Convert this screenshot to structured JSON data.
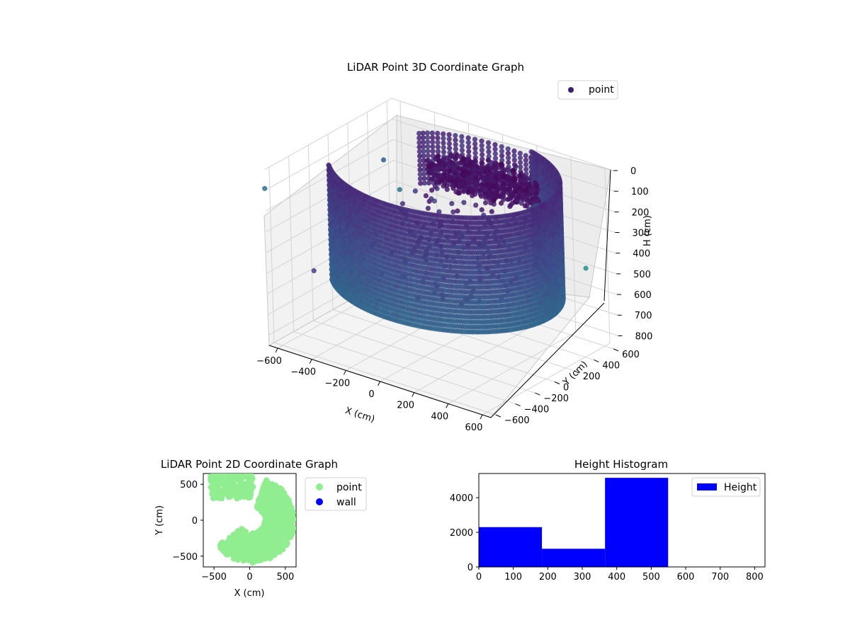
{
  "chart_data": [
    {
      "type": "scatter",
      "projection": "3d",
      "title": "LiDAR Point 3D Coordinate Graph",
      "xlabel": "X (cm)",
      "ylabel": "Y (cm)",
      "zlabel": "H (cm)",
      "xticks": [
        "−600",
        "−400",
        "−200",
        "0",
        "200",
        "400",
        "600"
      ],
      "yticks": [
        "−600",
        "−400",
        "−200",
        "0",
        "200",
        "400",
        "600"
      ],
      "zticks": [
        "0",
        "100",
        "200",
        "300",
        "400",
        "500",
        "600",
        "700",
        "800"
      ],
      "xlim": [
        -650,
        650
      ],
      "ylim": [
        -650,
        650
      ],
      "zlim": [
        0,
        850
      ],
      "z_axis_inverted": true,
      "colormap": "viridis",
      "legend": {
        "position": "upper-right",
        "entries": [
          {
            "label": "point",
            "color": "#3b1f6e"
          }
        ]
      },
      "structures": [
        {
          "kind": "curved-wall",
          "x_range": [
            -480,
            580
          ],
          "y_range": [
            -620,
            600
          ],
          "h_range": [
            0,
            560
          ]
        },
        {
          "kind": "roof-cluster",
          "x_center": 20,
          "y_center": 420,
          "h": 150
        },
        {
          "kind": "interior-scatter",
          "count": 120
        },
        {
          "kind": "outliers",
          "count": 8
        }
      ],
      "grid": true
    },
    {
      "type": "scatter",
      "title": "LiDAR Point 2D Coordinate Graph",
      "xlabel": "X (cm)",
      "ylabel": "Y (cm)",
      "xticks": [
        "−500",
        "0",
        "500"
      ],
      "yticks": [
        "−500",
        "0",
        "500"
      ],
      "xlim": [
        -650,
        650
      ],
      "ylim": [
        -650,
        650
      ],
      "series": [
        {
          "name": "point",
          "color": "#90ee90"
        },
        {
          "name": "wall",
          "color": "#0000ff"
        }
      ],
      "legend": "outside-right"
    },
    {
      "type": "bar",
      "title": "Height Histogram",
      "bins": [
        [
          0,
          183
        ],
        [
          183,
          366
        ],
        [
          366,
          549
        ],
        [
          549,
          732
        ],
        [
          732,
          830
        ]
      ],
      "values": [
        2300,
        1050,
        5150,
        0,
        0
      ],
      "series": [
        {
          "name": "Height",
          "color": "#0000ff"
        }
      ],
      "xticks": [
        "0",
        "100",
        "200",
        "300",
        "400",
        "500",
        "600",
        "700",
        "800"
      ],
      "yticks": [
        "0",
        "2000",
        "4000"
      ],
      "xlim": [
        0,
        830
      ],
      "ylim": [
        0,
        5400
      ],
      "legend": "upper-right"
    }
  ]
}
